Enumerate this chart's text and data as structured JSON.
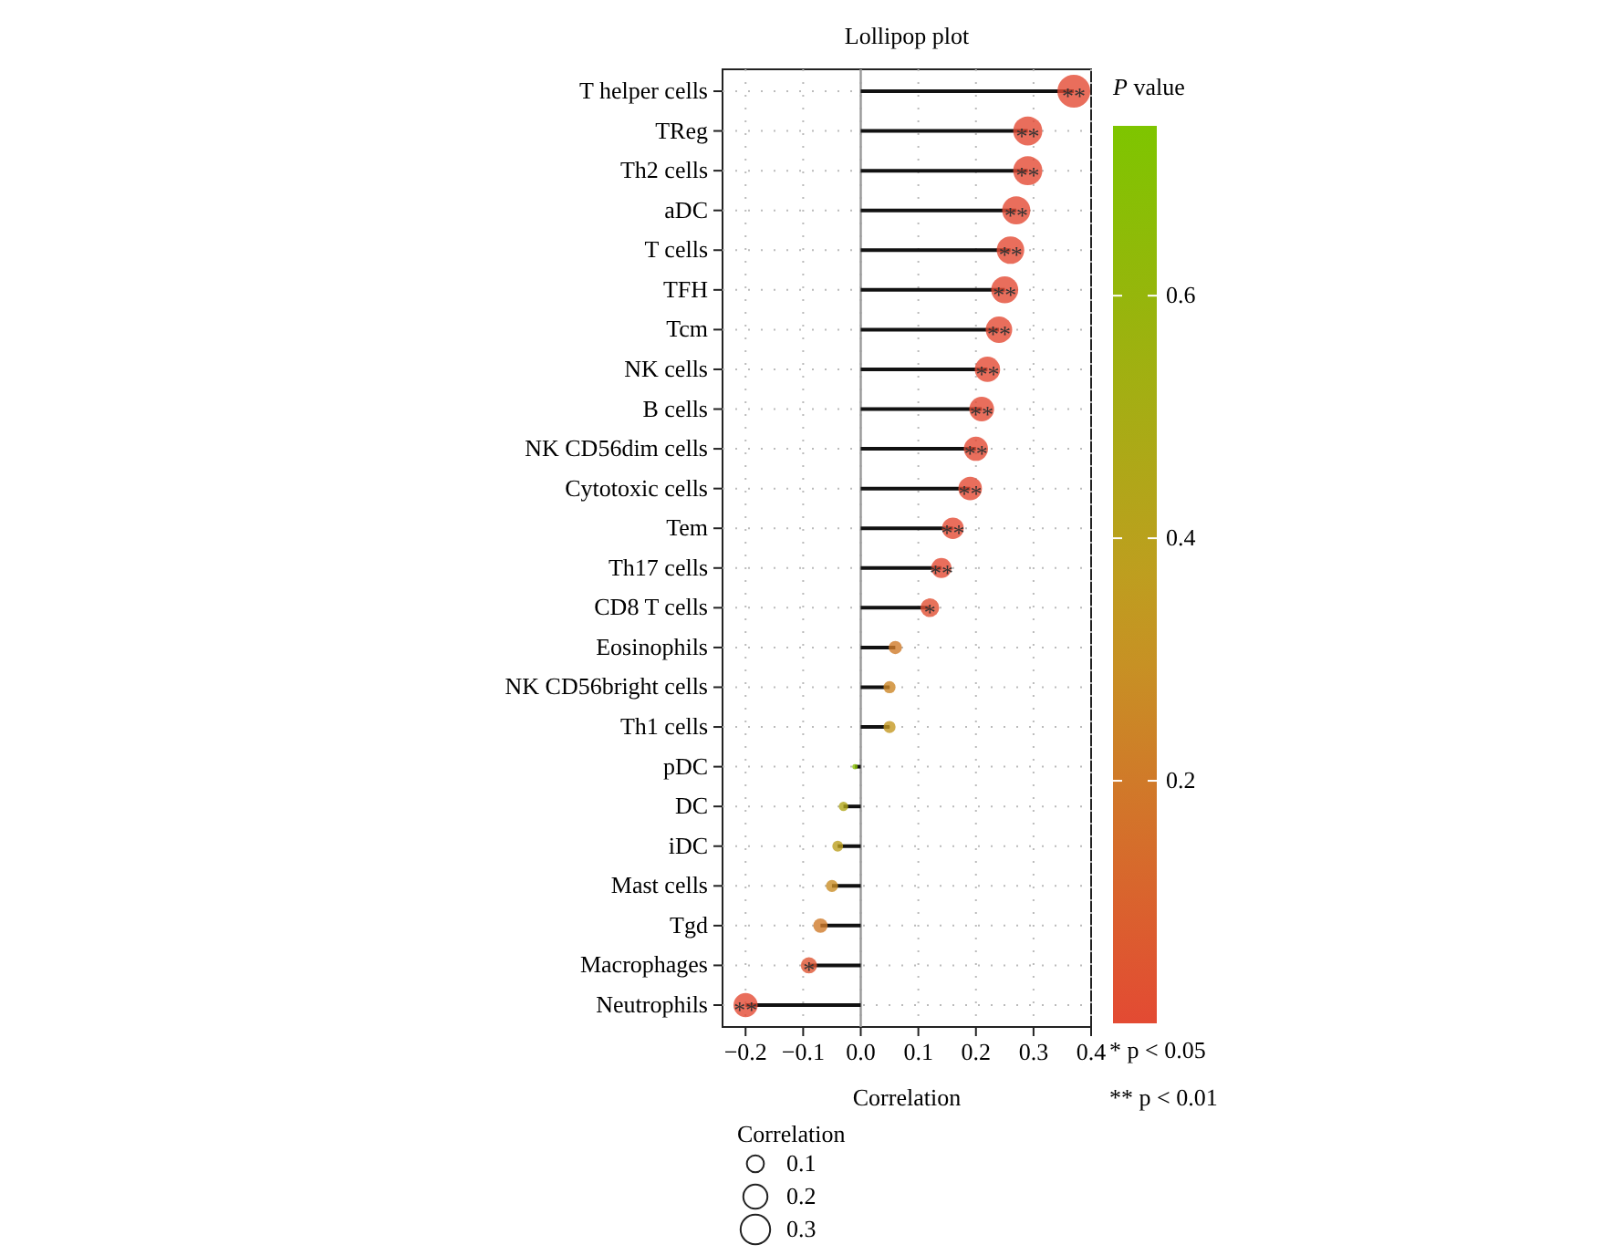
{
  "chart_data": {
    "type": "lollipop",
    "title": "Lollipop plot",
    "xlabel": "Correlation",
    "orientation": "horizontal",
    "categories": [
      "T helper cells",
      "TReg",
      "Th2 cells",
      "aDC",
      "T cells",
      "TFH",
      "Tcm",
      "NK cells",
      "B cells",
      "NK CD56dim cells",
      "Cytotoxic cells",
      "Tem",
      "Th17 cells",
      "CD8 T cells",
      "Eosinophils",
      "NK CD56bright cells",
      "Th1 cells",
      "pDC",
      "DC",
      "iDC",
      "Mast cells",
      "Tgd",
      "Macrophages",
      "Neutrophils"
    ],
    "values": [
      0.37,
      0.29,
      0.29,
      0.27,
      0.26,
      0.25,
      0.24,
      0.22,
      0.21,
      0.2,
      0.19,
      0.16,
      0.14,
      0.12,
      0.06,
      0.05,
      0.05,
      -0.01,
      -0.03,
      -0.04,
      -0.05,
      -0.07,
      -0.09,
      -0.2
    ],
    "sizes": [
      0.37,
      0.29,
      0.29,
      0.27,
      0.26,
      0.25,
      0.24,
      0.22,
      0.21,
      0.2,
      0.19,
      0.16,
      0.14,
      0.12,
      0.06,
      0.05,
      0.05,
      0.01,
      0.03,
      0.04,
      0.05,
      0.07,
      0.09,
      0.2
    ],
    "size_legend": [
      0.1,
      0.2,
      0.3
    ],
    "legend_title": "Correlation",
    "cvalues": [
      0,
      0,
      0,
      0,
      0,
      0,
      0,
      0,
      0,
      0,
      0,
      0,
      0,
      0.02,
      0.2,
      0.25,
      0.33,
      0.68,
      0.45,
      0.38,
      0.28,
      0.2,
      0.04,
      0
    ],
    "clim": [
      0,
      0.74
    ],
    "cticks": [
      0.2,
      0.4,
      0.6
    ],
    "clabel": "P value",
    "value_labels": [
      "**",
      "**",
      "**",
      "**",
      "**",
      "**",
      "**",
      "**",
      "**",
      "**",
      "**",
      "**",
      "**",
      "*",
      null,
      null,
      null,
      null,
      null,
      null,
      null,
      null,
      "*",
      "**"
    ],
    "xlim": [
      -0.24,
      0.4
    ],
    "xticks": [
      {
        "value": -0.2,
        "label": "−0.2"
      },
      {
        "value": -0.1,
        "label": "−0.1"
      },
      {
        "value": 0,
        "label": "0.0"
      },
      0.1,
      0.2,
      0.3,
      0.4
    ],
    "ref_lines": [
      {
        "axis": "x",
        "value": 0,
        "label": null,
        "color": "#999999"
      }
    ],
    "grid": true,
    "annotations": [
      "* p < 0.05",
      "** p < 0.01"
    ]
  }
}
